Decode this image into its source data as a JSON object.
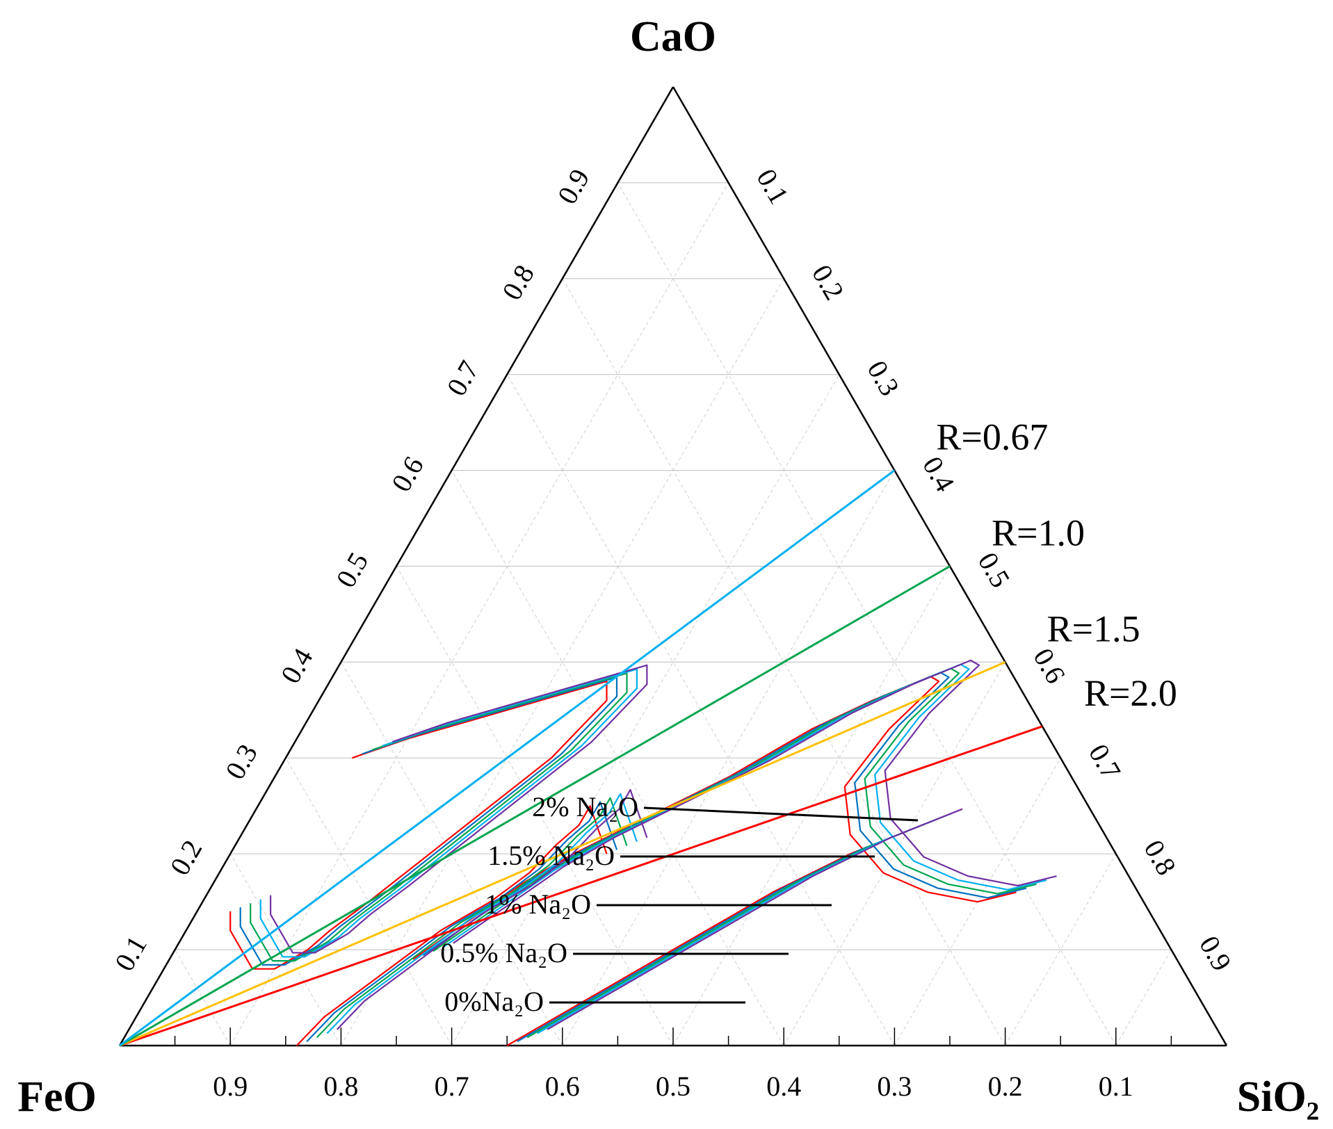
{
  "chart_data": {
    "type": "ternary",
    "vertices": {
      "top": "CaO",
      "left": "FeO",
      "right": "SiO₂"
    },
    "tick_values": [
      0.1,
      0.2,
      0.3,
      0.4,
      0.5,
      0.6,
      0.7,
      0.8,
      0.9
    ],
    "tick_labels": [
      "0.1",
      "0.2",
      "0.3",
      "0.4",
      "0.5",
      "0.6",
      "0.7",
      "0.8",
      "0.9"
    ],
    "bottom_tick_labels": [
      "0.9",
      "0.8",
      "0.7",
      "0.6",
      "0.5",
      "0.4",
      "0.3",
      "0.2",
      "0.1"
    ],
    "grid": true,
    "basicity_lines": [
      {
        "label": "R=2.0",
        "R": 2.0,
        "color": "#ff0000",
        "end": {
          "CaO": 0.333,
          "SiO2": 0.667
        }
      },
      {
        "label": "R=1.5",
        "R": 1.5,
        "color": "#ffc000",
        "end": {
          "CaO": 0.4,
          "SiO2": 0.6
        }
      },
      {
        "label": "R=1.0",
        "R": 1.0,
        "color": "#00a550",
        "end": {
          "CaO": 0.5,
          "SiO2": 0.5
        }
      },
      {
        "label": "R=0.67",
        "R": 0.67,
        "color": "#00b0f0",
        "end": {
          "CaO": 0.6,
          "SiO2": 0.4
        }
      }
    ],
    "series": [
      {
        "name": "0%Na₂O",
        "color": "#ff0000"
      },
      {
        "name": "0.5% Na₂O",
        "color": "#0070c0"
      },
      {
        "name": "1% Na₂O",
        "color": "#00a550"
      },
      {
        "name": "1.5% Na₂O",
        "color": "#00b0f0"
      },
      {
        "name": "2% Na₂O",
        "color": "#7030a0"
      }
    ],
    "contours": {
      "upper_left_loop": [
        [
          0.3,
          0.06
        ],
        [
          0.32,
          0.1
        ],
        [
          0.36,
          0.2
        ],
        [
          0.38,
          0.25
        ],
        [
          0.36,
          0.26
        ],
        [
          0.3,
          0.24
        ],
        [
          0.25,
          0.21
        ],
        [
          0.2,
          0.18
        ],
        [
          0.15,
          0.15
        ],
        [
          0.12,
          0.13
        ],
        [
          0.1,
          0.12
        ],
        [
          0.08,
          0.1
        ],
        [
          0.08,
          0.08
        ],
        [
          0.1,
          0.06
        ],
        [
          0.12,
          0.04
        ],
        [
          0.14,
          0.03
        ]
      ],
      "lower_left_curve": [
        [
          0.0,
          0.16
        ],
        [
          0.03,
          0.17
        ],
        [
          0.06,
          0.19
        ],
        [
          0.09,
          0.21
        ],
        [
          0.12,
          0.23
        ],
        [
          0.15,
          0.26
        ],
        [
          0.18,
          0.28
        ],
        [
          0.21,
          0.29
        ],
        [
          0.23,
          0.3
        ],
        [
          0.25,
          0.3
        ],
        [
          0.2,
          0.34
        ]
      ],
      "middle_band": [
        [
          0.09,
          0.22
        ],
        [
          0.13,
          0.25
        ],
        [
          0.17,
          0.28
        ],
        [
          0.2,
          0.31
        ],
        [
          0.24,
          0.36
        ],
        [
          0.28,
          0.41
        ],
        [
          0.33,
          0.46
        ],
        [
          0.36,
          0.5
        ],
        [
          0.385,
          0.54
        ],
        [
          0.38,
          0.55
        ],
        [
          0.33,
          0.53
        ],
        [
          0.27,
          0.52
        ],
        [
          0.22,
          0.55
        ],
        [
          0.18,
          0.6
        ],
        [
          0.16,
          0.65
        ],
        [
          0.15,
          0.7
        ],
        [
          0.16,
          0.73
        ]
      ],
      "right_band": [
        [
          0.0,
          0.35
        ],
        [
          0.04,
          0.39
        ],
        [
          0.08,
          0.43
        ],
        [
          0.12,
          0.47
        ],
        [
          0.16,
          0.51
        ],
        [
          0.2,
          0.56
        ],
        [
          0.23,
          0.61
        ]
      ]
    },
    "leader_targets": [
      "0%Na₂O",
      "0.5% Na₂O",
      "1% Na₂O",
      "1.5% Na₂O",
      "2% Na₂O"
    ]
  }
}
